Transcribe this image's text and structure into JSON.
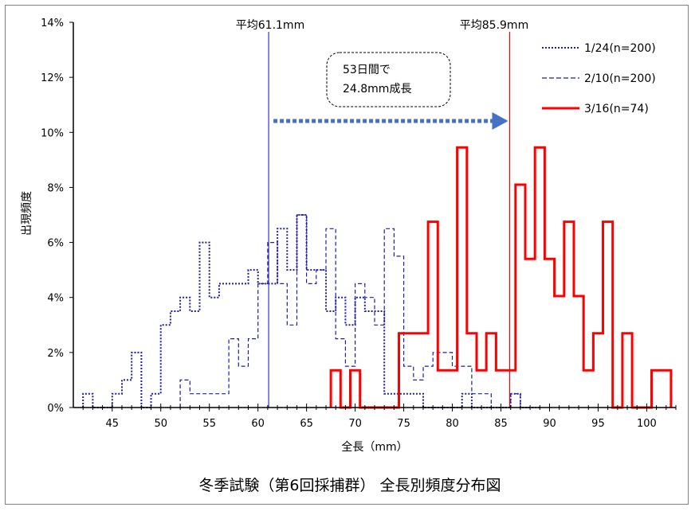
{
  "chart_data": {
    "type": "line",
    "title": "冬季試験（第6回採捕群） 全長別頻度分布図",
    "xlabel": "全長（mm）",
    "ylabel": "出現頻度",
    "xlim": [
      41,
      103
    ],
    "ylim": [
      0,
      14
    ],
    "x_ticks": [
      45,
      50,
      55,
      60,
      65,
      70,
      75,
      80,
      85,
      90,
      95,
      100
    ],
    "y_ticks": [
      "0%",
      "2%",
      "4%",
      "6%",
      "8%",
      "10%",
      "12%",
      "14%"
    ],
    "legend_position": "top-right",
    "series": [
      {
        "name": "1/24(n=200)",
        "color": "#1f1fa0",
        "style": "dotted",
        "x": [
          42.5,
          43.5,
          44.5,
          45.5,
          46.5,
          47.5,
          48.5,
          49.5,
          50.5,
          51.5,
          52.5,
          53.5,
          54.5,
          55.5,
          56.5,
          57.5,
          58.5,
          59.5,
          60.5,
          61.5,
          62.5,
          63.5,
          64.5,
          65.5,
          66.5,
          67.5,
          68.5,
          69.5,
          70.5,
          71.5,
          72.5,
          73.5,
          74.5,
          75.5,
          76.5,
          77.5,
          78.5,
          79.5,
          80.5,
          81.5,
          82.5,
          83.5,
          84.5,
          85.5,
          86.5,
          87.5,
          88.5
        ],
        "values": [
          0.5,
          0,
          0,
          0.5,
          1,
          2,
          0,
          0.5,
          3,
          3.5,
          4,
          3.5,
          6,
          4,
          4.5,
          4.5,
          4.5,
          5,
          4.5,
          4.5,
          6.5,
          5,
          7,
          5,
          5,
          3.5,
          4,
          3,
          4,
          3.5,
          3.5,
          0.5,
          0.5,
          0.5,
          0.5,
          0,
          0,
          0,
          0,
          0.5,
          0,
          0,
          0,
          0,
          0.5,
          0,
          0
        ]
      },
      {
        "name": "2/10(n=200)",
        "color": "#1f1fa0",
        "style": "dashed",
        "x": [
          52.5,
          53.5,
          54.5,
          55.5,
          56.5,
          57.5,
          58.5,
          59.5,
          60.5,
          61.5,
          62.5,
          63.5,
          64.5,
          65.5,
          66.5,
          67.5,
          68.5,
          69.5,
          70.5,
          71.5,
          72.5,
          73.5,
          74.5,
          75.5,
          76.5,
          77.5,
          78.5,
          79.5,
          80.5,
          81.5,
          82.5,
          83.5,
          84.5,
          85.5,
          86.5,
          87.5
        ],
        "values": [
          1,
          0.5,
          0.5,
          0.5,
          0.5,
          2.5,
          1.5,
          2.5,
          4.5,
          6,
          4.5,
          3,
          7,
          4.5,
          5,
          6.5,
          2.5,
          1.5,
          4.5,
          4,
          3,
          6.5,
          5.5,
          1.5,
          1,
          1.5,
          2,
          2,
          1.5,
          1.5,
          0.5,
          0.5,
          0,
          0,
          0.5,
          0
        ]
      },
      {
        "name": "3/16(n=74)",
        "color": "#ff0000",
        "style": "solid",
        "x": [
          68,
          69,
          70,
          71,
          72,
          73,
          74,
          75,
          76,
          77,
          78,
          79,
          80,
          81,
          82,
          83,
          84,
          85,
          86,
          87,
          88,
          89,
          90,
          91,
          92,
          93,
          94,
          95,
          96,
          97,
          98,
          99,
          100,
          101,
          102
        ],
        "values": [
          1.35,
          0,
          1.35,
          0,
          0,
          0,
          0,
          2.7,
          2.7,
          2.7,
          6.75,
          1.35,
          1.35,
          9.45,
          2.7,
          1.35,
          2.7,
          1.35,
          1.35,
          8.1,
          5.4,
          9.45,
          5.4,
          4.05,
          6.75,
          4.05,
          1.35,
          2.7,
          6.75,
          0,
          2.7,
          0,
          0,
          1.35,
          1.35
        ]
      }
    ],
    "annotations": {
      "mean1": "平均61.1mm",
      "mean1_value": 61.1,
      "mean2": "平均85.9mm",
      "mean2_value": 85.9,
      "box_line1": "53日間で",
      "box_line2": "24.8mm成長"
    }
  },
  "colors": {
    "blue": "#1f1fa0",
    "mean_blue": "#3333dd",
    "red": "#ff0000",
    "arrow": "#4472c4"
  }
}
